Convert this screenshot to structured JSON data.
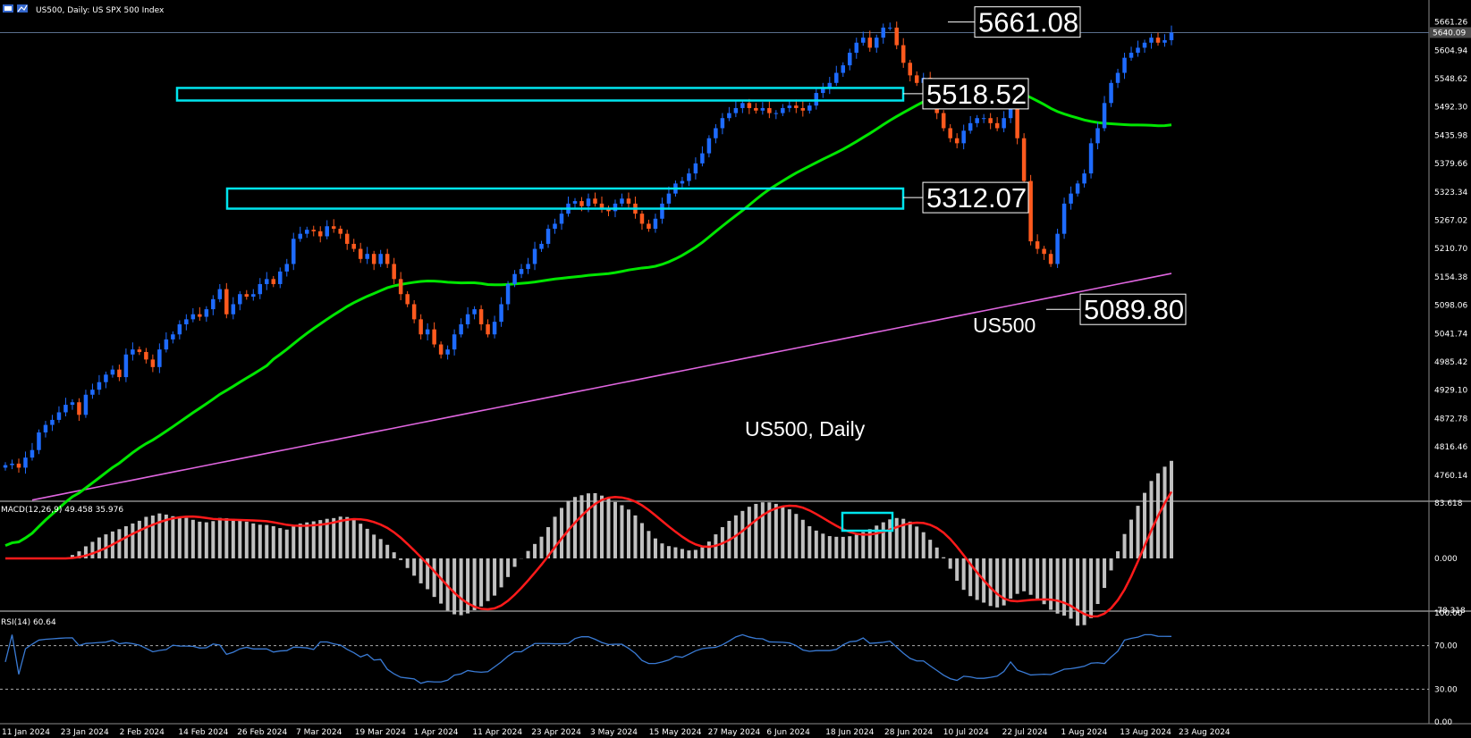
{
  "window": {
    "symbol_title": "US500, Daily:  US SPX 500 Index",
    "icon": "chart-icon"
  },
  "chart_data": [
    {
      "type": "candlestick",
      "title": "US500, Daily",
      "symbol_label": "US500",
      "ylim": [
        4710,
        5680
      ],
      "y_ticks": [
        "5661.26",
        "5604.94",
        "5548.62",
        "5492.30",
        "5435.98",
        "5379.66",
        "5323.34",
        "5267.02",
        "5210.70",
        "5154.38",
        "5098.06",
        "5041.74",
        "4985.42",
        "4929.10",
        "4872.78",
        "4816.46",
        "4760.14"
      ],
      "current_price_label": "5640.09",
      "x_labels": [
        "11 Jan 2024",
        "23 Jan 2024",
        "2 Feb 2024",
        "14 Feb 2024",
        "26 Feb 2024",
        "7 Mar 2024",
        "19 Mar 2024",
        "1 Apr 2024",
        "11 Apr 2024",
        "23 Apr 2024",
        "3 May 2024",
        "15 May 2024",
        "27 May 2024",
        "6 Jun 2024",
        "18 Jun 2024",
        "28 Jun 2024",
        "10 Jul 2024",
        "22 Jul 2024",
        "1 Aug 2024",
        "13 Aug 2024",
        "23 Aug 2024"
      ],
      "closes": [
        4780,
        4783,
        4775,
        4795,
        4810,
        4845,
        4860,
        4870,
        4885,
        4900,
        4905,
        4880,
        4920,
        4930,
        4945,
        4960,
        4970,
        4955,
        5000,
        5010,
        5005,
        4990,
        4975,
        5010,
        5030,
        5040,
        5060,
        5070,
        5080,
        5075,
        5090,
        5110,
        5130,
        5080,
        5100,
        5120,
        5115,
        5120,
        5140,
        5150,
        5140,
        5165,
        5180,
        5230,
        5240,
        5248,
        5245,
        5235,
        5255,
        5250,
        5240,
        5220,
        5210,
        5190,
        5200,
        5180,
        5200,
        5180,
        5150,
        5120,
        5100,
        5070,
        5040,
        5050,
        5020,
        5000,
        5010,
        5040,
        5060,
        5080,
        5090,
        5060,
        5040,
        5065,
        5100,
        5140,
        5160,
        5170,
        5180,
        5210,
        5220,
        5250,
        5260,
        5280,
        5300,
        5305,
        5295,
        5310,
        5300,
        5290,
        5285,
        5300,
        5310,
        5300,
        5280,
        5260,
        5250,
        5270,
        5300,
        5320,
        5340,
        5345,
        5360,
        5380,
        5400,
        5430,
        5450,
        5470,
        5480,
        5490,
        5500,
        5490,
        5485,
        5490,
        5480,
        5480,
        5490,
        5495,
        5490,
        5485,
        5495,
        5520,
        5530,
        5540,
        5560,
        5575,
        5600,
        5620,
        5630,
        5610,
        5630,
        5650,
        5650,
        5615,
        5580,
        5555,
        5540,
        5550,
        5520,
        5480,
        5450,
        5430,
        5420,
        5445,
        5460,
        5470,
        5470,
        5460,
        5450,
        5470,
        5540,
        5430,
        5345,
        5225,
        5210,
        5200,
        5180,
        5240,
        5300,
        5320,
        5340,
        5360,
        5420,
        5450,
        5500,
        5540,
        5560,
        5590,
        5600,
        5610,
        5620,
        5630,
        5620,
        5625,
        5640
      ],
      "candle_colors": {
        "up": "#1e6bff",
        "down": "#ff5a1e"
      },
      "support_boxes": [
        {
          "label": "5518.52",
          "low": 5505,
          "high": 5530,
          "x_from_index": 30
        },
        {
          "label": "5312.07",
          "low": 5290,
          "high": 5330,
          "x_from_index": 38
        }
      ],
      "callouts": [
        {
          "label": "5661.08",
          "value": 5661.08
        },
        {
          "label": "5518.52",
          "value": 5518.52
        },
        {
          "label": "5312.07",
          "value": 5312.07
        },
        {
          "label": "5089.80",
          "value": 5089.8
        }
      ],
      "ma50_color": "#00e600",
      "ma200_color": "#e066e0",
      "box_color": "#00e5ee"
    },
    {
      "type": "histogram+line",
      "title": "MACD(12,26,9) 49.458 35.976",
      "y_ticks": [
        "83.618",
        "0.000",
        "-78.318"
      ],
      "ylim": [
        -78.318,
        83.618
      ],
      "signal_color": "#ff1a1a",
      "bar_color": "#c0c0c0"
    },
    {
      "type": "line",
      "title": "RSI(14) 60.64",
      "y_ticks": [
        "100.00",
        "70.00",
        "30.00",
        "0.00"
      ],
      "ylim": [
        0,
        100
      ],
      "line_color": "#3a7bd5"
    }
  ]
}
